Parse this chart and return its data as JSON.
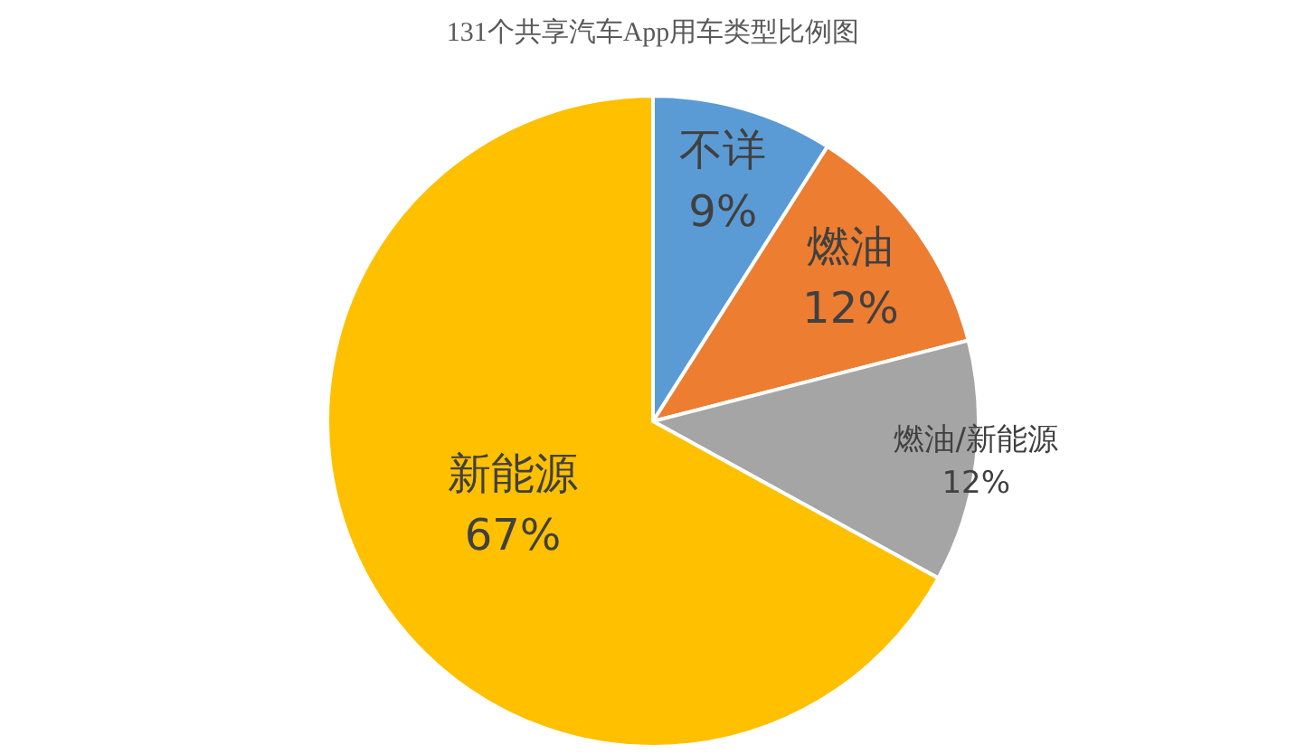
{
  "chart_data": {
    "type": "pie",
    "title": "131个共享汽车App用车类型比例图",
    "categories": [
      "不详",
      "燃油",
      "燃油/新能源",
      "新能源"
    ],
    "values": [
      9,
      12,
      12,
      67
    ],
    "colors": [
      "#5b9bd5",
      "#ed7d31",
      "#a5a5a5",
      "#ffc000"
    ],
    "value_labels": [
      "9%",
      "12%",
      "12%",
      "67%"
    ]
  }
}
